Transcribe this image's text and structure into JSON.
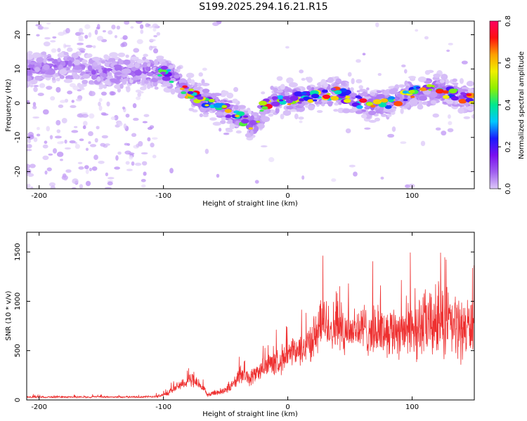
{
  "title": "S199.2025.294.16.21.R15",
  "chart_data": [
    {
      "type": "heatmap",
      "xlabel": "Height of straight line (km)",
      "ylabel": "Frequency (Hz)",
      "xlim": [
        -210,
        150
      ],
      "ylim": [
        -25,
        24
      ],
      "xticks": [
        -200,
        -100,
        0,
        100
      ],
      "xtick_labels": [
        "-200",
        "-100",
        "0",
        "100"
      ],
      "yticks": [
        -20,
        -10,
        0,
        10,
        20
      ],
      "ytick_labels": [
        "-20",
        "-10",
        "0",
        "10",
        "20"
      ],
      "ridge": {
        "description": "dominant frequency trace (km, Hz)",
        "x": [
          -210,
          -180,
          -150,
          -120,
          -100,
          -90,
          -80,
          -70,
          -60,
          -50,
          -40,
          -30,
          -25,
          -20,
          -10,
          0,
          20,
          40,
          60,
          80,
          100,
          120,
          150
        ],
        "y": [
          10,
          11,
          9,
          9,
          9,
          7,
          3,
          1,
          0,
          -2,
          -4,
          -6,
          -6,
          -1,
          1,
          1,
          2,
          3,
          0,
          0,
          3,
          4,
          1
        ]
      },
      "colorbar": {
        "label": "Normalized spectral amplitude",
        "range": [
          0.0,
          0.8
        ],
        "ticks": [
          0.0,
          0.2,
          0.4,
          0.6,
          0.8
        ],
        "tick_labels": [
          "0.0",
          "0.2",
          "0.4",
          "0.6",
          "0.8"
        ],
        "colors": [
          "#ffffff",
          "#dcc8f8",
          "#a060f0",
          "#7a10f0",
          "#1a1aff",
          "#00c8ff",
          "#00e890",
          "#90f000",
          "#f0f000",
          "#ffa000",
          "#ff1010",
          "#ff0060"
        ]
      }
    },
    {
      "type": "line",
      "xlabel": "Height of straight line (km)",
      "ylabel": "SNR (10 * v/v)",
      "xlim": [
        -210,
        150
      ],
      "ylim": [
        0,
        1700
      ],
      "xticks": [
        -200,
        -100,
        0,
        100
      ],
      "xtick_labels": [
        "-200",
        "-100",
        "0",
        "100"
      ],
      "yticks": [
        0,
        500,
        1000,
        1500
      ],
      "ytick_labels": [
        "0",
        "500",
        "1000",
        "1500"
      ],
      "color": "#ee3030",
      "series": [
        {
          "name": "SNR",
          "x": [
            -210,
            -180,
            -150,
            -120,
            -105,
            -95,
            -85,
            -78,
            -70,
            -65,
            -55,
            -45,
            -38,
            -30,
            -20,
            -10,
            0,
            10,
            20,
            30,
            40,
            50,
            60,
            70,
            80,
            90,
            100,
            110,
            120,
            125,
            130,
            140,
            150
          ],
          "y": [
            30,
            30,
            30,
            30,
            35,
            80,
            170,
            200,
            140,
            60,
            80,
            140,
            260,
            220,
            330,
            380,
            450,
            500,
            620,
            780,
            720,
            720,
            720,
            700,
            700,
            720,
            720,
            760,
            780,
            800,
            760,
            720,
            760
          ],
          "spread": [
            12,
            12,
            12,
            12,
            15,
            40,
            70,
            90,
            60,
            30,
            40,
            70,
            110,
            100,
            130,
            160,
            180,
            200,
            250,
            350,
            300,
            300,
            320,
            300,
            300,
            340,
            380,
            420,
            450,
            500,
            450,
            380,
            350
          ]
        }
      ]
    }
  ]
}
